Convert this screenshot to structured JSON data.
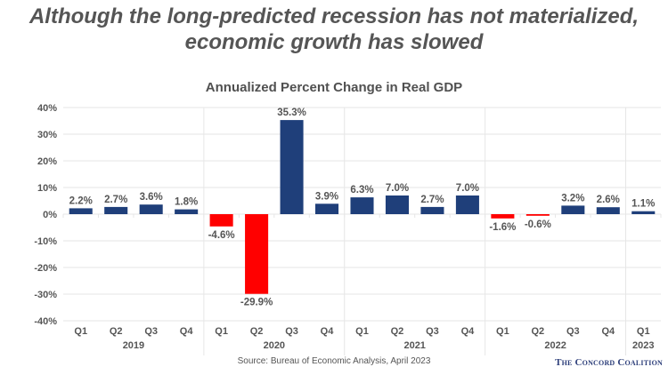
{
  "headline": {
    "line1": "Although the long-predicted recession has not materialized,",
    "line2": "economic growth has slowed"
  },
  "footer": {
    "source": "Source: Bureau of Economic Analysis, April 2023",
    "logo": "The Concord Coalition"
  },
  "colors": {
    "positive": "#1f3f7a",
    "negative": "#ff0000",
    "grid": "#e6e6e6",
    "text": "#555555"
  },
  "chart_data": {
    "type": "bar",
    "title": "Annualized Percent Change in Real GDP",
    "xlabel": "",
    "ylabel": "",
    "ylim": [
      -40,
      40
    ],
    "yticks": [
      40,
      30,
      20,
      10,
      0,
      -10,
      -20,
      -30,
      -40
    ],
    "ytick_labels": [
      "40%",
      "30%",
      "20%",
      "10%",
      "0%",
      "-10%",
      "-20%",
      "-30%",
      "-40%"
    ],
    "grid": true,
    "legend": "none",
    "categories": [
      "Q1",
      "Q2",
      "Q3",
      "Q4",
      "Q1",
      "Q2",
      "Q3",
      "Q4",
      "Q1",
      "Q2",
      "Q3",
      "Q4",
      "Q1",
      "Q2",
      "Q3",
      "Q4",
      "Q1"
    ],
    "groups": [
      {
        "label": "2019",
        "count": 4
      },
      {
        "label": "2020",
        "count": 4
      },
      {
        "label": "2021",
        "count": 4
      },
      {
        "label": "2022",
        "count": 4
      },
      {
        "label": "2023",
        "count": 1
      }
    ],
    "values": [
      2.2,
      2.7,
      3.6,
      1.8,
      -4.6,
      -29.9,
      35.3,
      3.9,
      6.3,
      7.0,
      2.7,
      7.0,
      -1.6,
      -0.6,
      3.2,
      2.6,
      1.1
    ],
    "data_labels": [
      "2.2%",
      "2.7%",
      "3.6%",
      "1.8%",
      "-4.6%",
      "-29.9%",
      "35.3%",
      "3.9%",
      "6.3%",
      "7.0%",
      "2.7%",
      "7.0%",
      "-1.6%",
      "-0.6%",
      "3.2%",
      "2.6%",
      "1.1%"
    ]
  }
}
